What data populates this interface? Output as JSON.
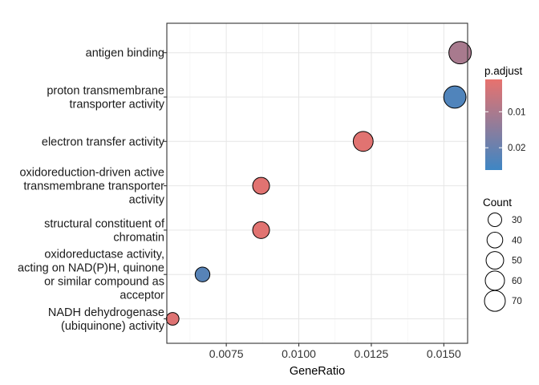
{
  "chart_data": {
    "type": "scatter",
    "title": "",
    "xlabel": "GeneRatio",
    "ylabel": "",
    "xlim": [
      0.00545,
      0.01582
    ],
    "x_ticks": [
      {
        "value": 0.0075,
        "label": "0.0075"
      },
      {
        "value": 0.01,
        "label": "0.0100"
      },
      {
        "value": 0.0125,
        "label": "0.0125"
      },
      {
        "value": 0.015,
        "label": "0.0150"
      }
    ],
    "categories": [
      "NADH dehydrogenase (ubiquinone) activity",
      "oxidoreductase activity, acting on NAD(P)H, quinone or similar compound as acceptor",
      "structural constituent of chromatin",
      "oxidoreduction-driven active transmembrane transporter activity",
      "electron transfer activity",
      "proton transmembrane transporter activity",
      "antigen binding"
    ],
    "category_label_lines": [
      [
        "NADH dehydrogenase",
        "(ubiquinone) activity"
      ],
      [
        "oxidoreductase activity,",
        "acting on NAD(P)H, quinone",
        "or similar compound as",
        "acceptor"
      ],
      [
        "structural constituent of",
        "chromatin"
      ],
      [
        "oxidoreduction-driven active",
        "transmembrane transporter",
        "activity"
      ],
      [
        "electron transfer activity"
      ],
      [
        "proton transmembrane",
        "transporter activity"
      ],
      [
        "antigen binding"
      ]
    ],
    "points": [
      {
        "category": "NADH dehydrogenase (ubiquinone) activity",
        "gene_ratio": 0.00565,
        "count": 26,
        "p_adjust": 0.0025
      },
      {
        "category": "oxidoreductase activity, acting on NAD(P)H, quinone or similar compound as acceptor",
        "gene_ratio": 0.00668,
        "count": 35,
        "p_adjust": 0.0225
      },
      {
        "category": "structural constituent of chromatin",
        "gene_ratio": 0.0087,
        "count": 46,
        "p_adjust": 0.002
      },
      {
        "category": "oxidoreduction-driven active transmembrane transporter activity",
        "gene_ratio": 0.0087,
        "count": 46,
        "p_adjust": 0.002
      },
      {
        "category": "electron transfer activity",
        "gene_ratio": 0.01222,
        "count": 64,
        "p_adjust": 0.002
      },
      {
        "category": "proton transmembrane transporter activity",
        "gene_ratio": 0.01538,
        "count": 80,
        "p_adjust": 0.0235
      },
      {
        "category": "antigen binding",
        "gene_ratio": 0.01556,
        "count": 81,
        "p_adjust": 0.0105
      }
    ],
    "color_legend": {
      "title": "p.adjust",
      "low_color": "#E8726E",
      "high_color": "#3E86C4",
      "range": [
        0.001,
        0.0262
      ],
      "ticks": [
        {
          "value": 0.01,
          "label": "0.01"
        },
        {
          "value": 0.02,
          "label": "0.02"
        }
      ]
    },
    "size_legend": {
      "title": "Count",
      "entries": [
        {
          "value": 30,
          "label": "30"
        },
        {
          "value": 40,
          "label": "40"
        },
        {
          "value": 50,
          "label": "50"
        },
        {
          "value": 60,
          "label": "60"
        },
        {
          "value": 70,
          "label": "70"
        }
      ]
    },
    "grid": true,
    "legend_position": "right"
  }
}
